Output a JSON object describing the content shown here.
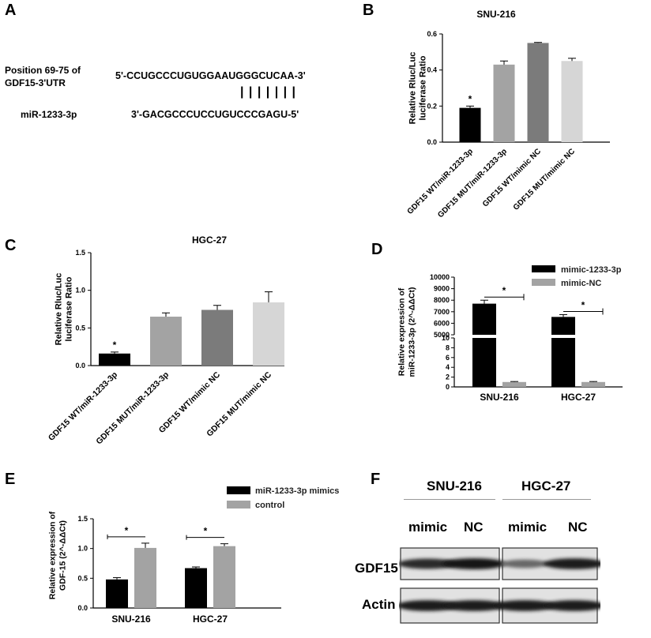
{
  "panel_labels": {
    "a": "A",
    "b": "B",
    "c": "C",
    "d": "D",
    "e": "E",
    "f": "F"
  },
  "panel_a": {
    "site_label_1": "Position 69-75 of",
    "site_label_2": "GDF15-3'UTR",
    "mirna_label": "miR-1233-3p",
    "utr_seq": "5'-CCUGCCCUGUGGAAUGGGCUCAA-3'",
    "mirna_seq": "3'-GACGCCCUCCUGUCCCGAGU-5'",
    "pairing_marks": "| | | | | | |"
  },
  "chart_data": [
    {
      "id": "B",
      "type": "bar",
      "title": "SNU-216",
      "ylabel": "Relative Rluc/Luc luciferase Ratio",
      "ylabel_lines": [
        "Relative Rluc/Luc",
        "luciferase Ratio"
      ],
      "categories": [
        "GDF15 WT/miR-1233-3p",
        "GDF15 MUT/miR-1233-3p",
        "GDF15 WT/mimic NC",
        "GDF15 MUT/mimic NC"
      ],
      "values": [
        0.19,
        0.43,
        0.55,
        0.45
      ],
      "errors": [
        0.01,
        0.02,
        0.003,
        0.015
      ],
      "colors": [
        "#000000",
        "#a3a3a3",
        "#7b7b7b",
        "#d6d6d6"
      ],
      "ylim": [
        0,
        0.6
      ],
      "yticks": [
        "0.0",
        "0.2",
        "0.4",
        "0.6"
      ],
      "annotations": [
        {
          "text": "*",
          "category_index": 0
        }
      ]
    },
    {
      "id": "C",
      "type": "bar",
      "title": "HGC-27",
      "ylabel": "Relative Rluc/Luc luciferase Ratio",
      "ylabel_lines": [
        "Relative Rluc/Luc",
        "luciferase Ratio"
      ],
      "categories": [
        "GDF15 WT/miR-1233-3p",
        "GDF15 MUT/miR-1233-3p",
        "GDF15 WT/mimic NC",
        "GDF15 MUT/mimic NC"
      ],
      "values": [
        0.16,
        0.65,
        0.74,
        0.84
      ],
      "errors": [
        0.02,
        0.05,
        0.06,
        0.14
      ],
      "colors": [
        "#000000",
        "#a3a3a3",
        "#7b7b7b",
        "#d6d6d6"
      ],
      "ylim": [
        0,
        1.5
      ],
      "yticks": [
        "0.0",
        "0.5",
        "1.0",
        "1.5"
      ],
      "annotations": [
        {
          "text": "*",
          "category_index": 0
        }
      ]
    },
    {
      "id": "D",
      "type": "bar",
      "ylabel": "Relative expression of miR-1233-3p (2^-ΔΔCt)",
      "ylabel_lines": [
        "Relative expression of",
        "miR-1233-3p (2^-ΔΔCt)"
      ],
      "categories": [
        "SNU-216",
        "HGC-27"
      ],
      "series": [
        {
          "name": "mimic-1233-3p",
          "color": "#000000",
          "values": [
            7700,
            6550
          ],
          "errors": [
            300,
            200
          ]
        },
        {
          "name": "mimic-NC",
          "color": "#a3a3a3",
          "values": [
            1,
            1
          ],
          "errors": [
            0.1,
            0.1
          ]
        }
      ],
      "axis_break": true,
      "upper_ylim": [
        5000,
        10000
      ],
      "lower_ylim": [
        0,
        10
      ],
      "yticks_upper": [
        "10000",
        "9000",
        "8000",
        "7000",
        "6000",
        "5000"
      ],
      "yticks_lower": [
        "10",
        "8",
        "6",
        "4",
        "2",
        "0"
      ],
      "legend": "top-right",
      "annotations": [
        {
          "text": "*",
          "category_index": 0
        },
        {
          "text": "*",
          "category_index": 1
        }
      ]
    },
    {
      "id": "E",
      "type": "bar",
      "ylabel": "Relative expression of GDF-15 (2^-ΔΔCt)",
      "ylabel_lines": [
        "Relative expression of",
        "GDF-15 (2^-ΔΔCt)"
      ],
      "categories": [
        "SNU-216",
        "HGC-27"
      ],
      "series": [
        {
          "name": "miR-1233-3p mimics",
          "color": "#000000",
          "values": [
            0.48,
            0.67
          ],
          "errors": [
            0.03,
            0.02
          ]
        },
        {
          "name": "control",
          "color": "#a3a3a3",
          "values": [
            1.01,
            1.04
          ],
          "errors": [
            0.08,
            0.04
          ]
        }
      ],
      "ylim": [
        0,
        1.5
      ],
      "yticks": [
        "0.0",
        "0.5",
        "1.0",
        "1.5"
      ],
      "legend": "top-right",
      "annotations": [
        {
          "text": "*",
          "category_index": 0
        },
        {
          "text": "*",
          "category_index": 1
        }
      ]
    }
  ],
  "panel_f": {
    "groups": [
      "SNU-216",
      "HGC-27"
    ],
    "lanes": [
      "mimic",
      "NC",
      "mimic",
      "NC"
    ],
    "rows": [
      "GDF15",
      "Actin"
    ],
    "gdf15_intensity": [
      0.85,
      1.0,
      0.45,
      0.95
    ],
    "actin_intensity": [
      0.95,
      0.95,
      0.95,
      0.95
    ]
  }
}
